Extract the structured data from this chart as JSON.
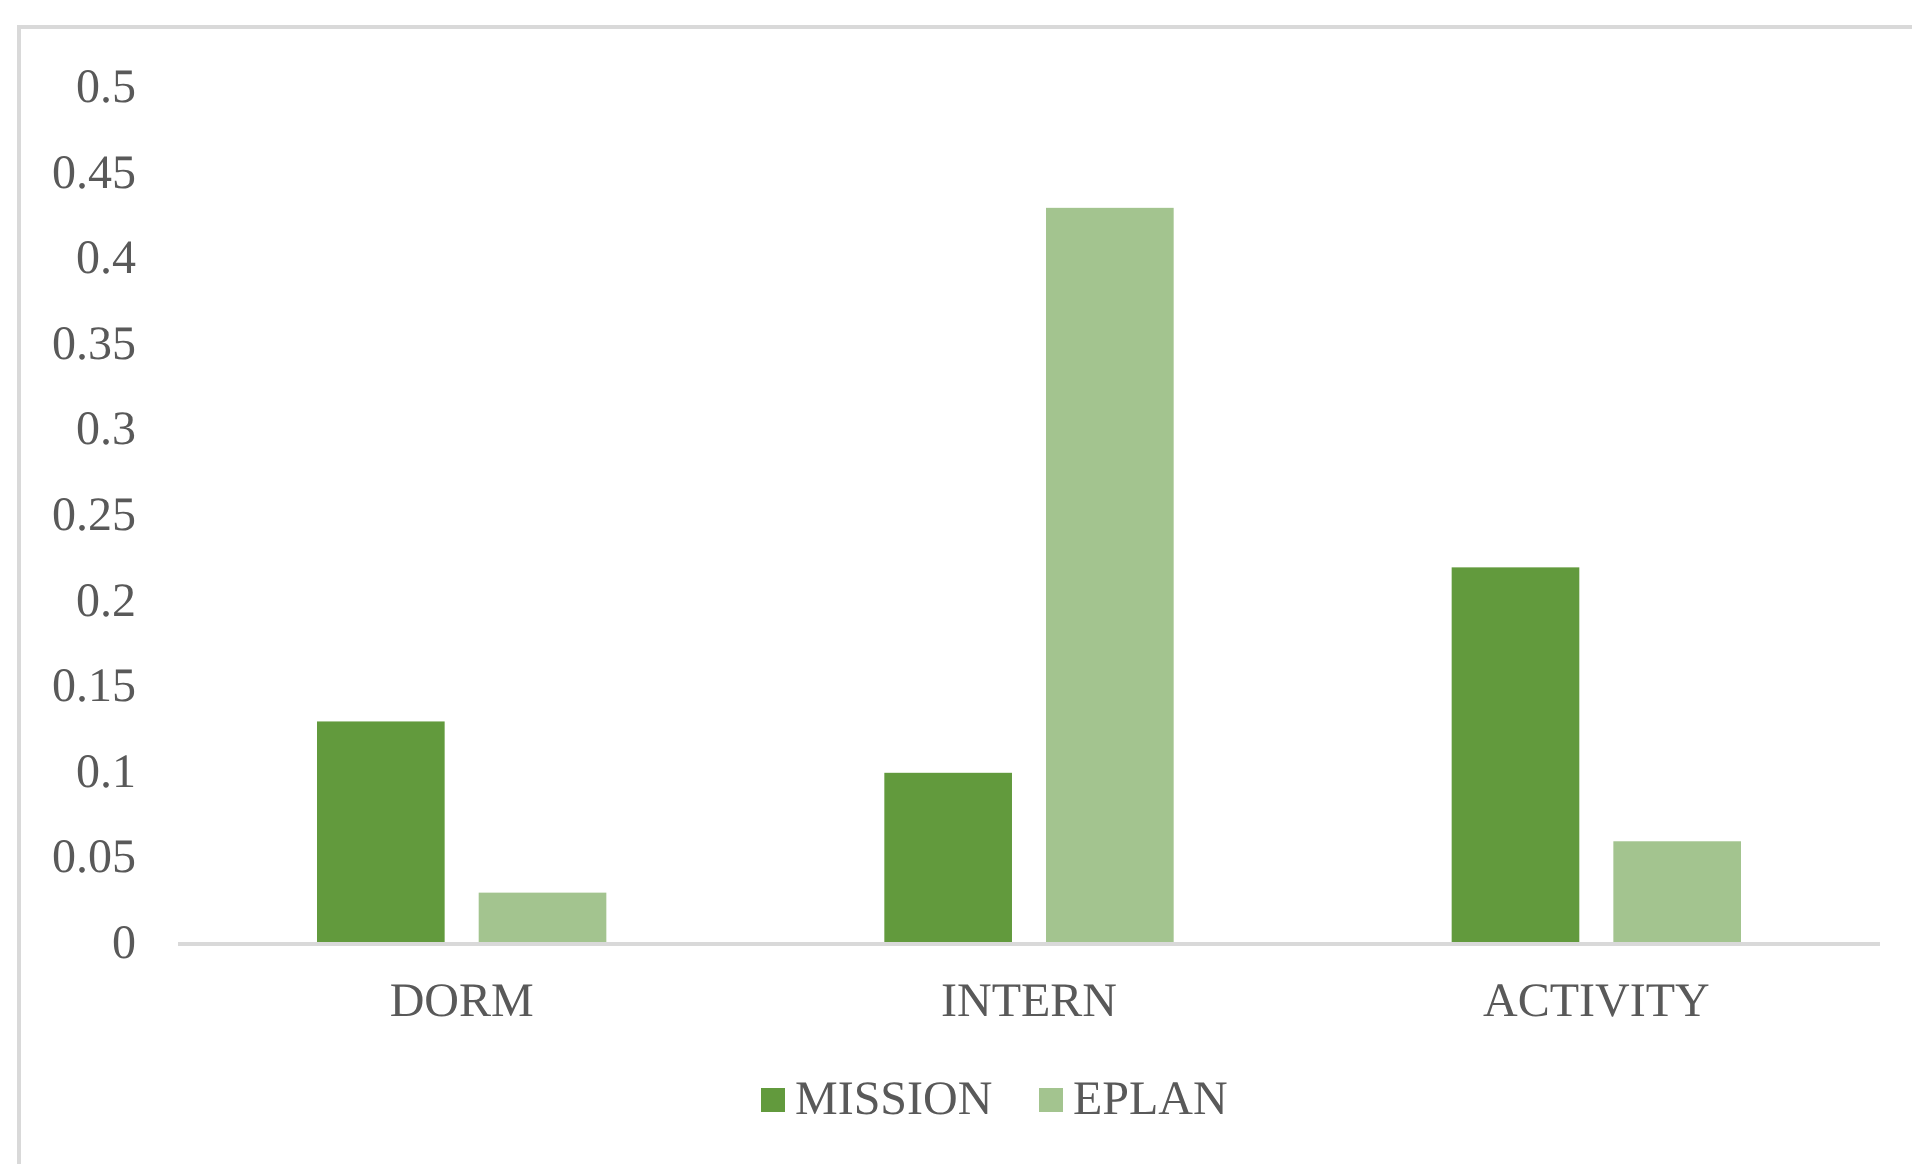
{
  "chart_data": {
    "type": "bar",
    "categories": [
      "DORM",
      "INTERN",
      "ACTIVITY"
    ],
    "series": [
      {
        "name": "MISSION",
        "color": "#629a3d",
        "values": [
          0.13,
          0.1,
          0.22
        ]
      },
      {
        "name": "EPLAN",
        "color": "#a3c48f",
        "values": [
          0.03,
          0.43,
          0.06
        ]
      }
    ],
    "ylim": [
      0,
      0.5
    ],
    "yticks": [
      0,
      0.05,
      0.1,
      0.15,
      0.2,
      0.25,
      0.3,
      0.35,
      0.4,
      0.45,
      0.5
    ],
    "legend": "bottom"
  }
}
